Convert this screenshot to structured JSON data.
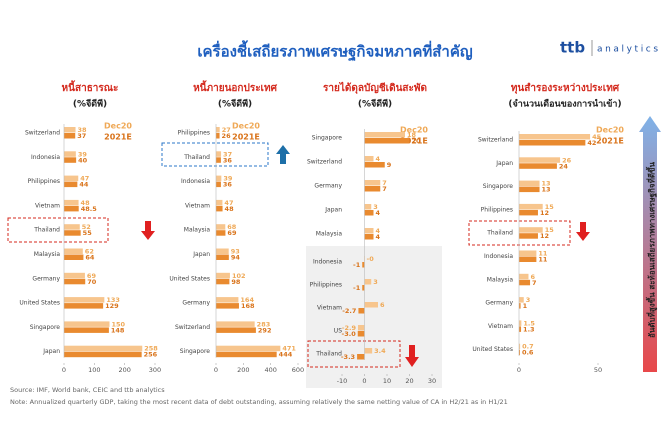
{
  "header": {
    "title": "เครื่องชี้เสถียรภาพเศรษฐกิจมหภาคที่สำคัญ",
    "logo_brand": "ttb",
    "logo_text": "analytics"
  },
  "chart_data": [
    {
      "type": "bar",
      "title": "หนี้สาธารณะ",
      "subtitle": "(%จีดีพี)",
      "categories": [
        "Switzerland",
        "Indonesia",
        "Philippines",
        "Vietnam",
        "Thailand",
        "Malaysia",
        "Germany",
        "United States",
        "Singapore",
        "Japan"
      ],
      "series": [
        {
          "name": "Dec20",
          "color": "#f7c58d",
          "values": [
            38,
            39,
            47,
            48,
            52,
            62,
            69,
            133,
            150,
            258
          ]
        },
        {
          "name": "2021E",
          "color": "#e98a2f",
          "values": [
            37,
            40,
            44,
            48.5,
            55,
            64,
            70,
            129,
            148,
            256
          ]
        }
      ],
      "xlim": [
        0,
        300
      ],
      "xticks": [
        0,
        100,
        200,
        300
      ]
    },
    {
      "type": "bar",
      "title": "หนี้ภายนอกประเทศ",
      "subtitle": "(%จีดีพี)",
      "categories": [
        "Philippines",
        "Thailand",
        "Indonesia",
        "Vietnam",
        "Malaysia",
        "Japan",
        "United States",
        "Germany",
        "Switzerland",
        "Singapore"
      ],
      "series": [
        {
          "name": "Dec20",
          "color": "#f7c58d",
          "values": [
            27,
            37,
            39,
            47,
            68,
            93,
            102,
            164,
            283,
            471
          ]
        },
        {
          "name": "2021E",
          "color": "#e98a2f",
          "values": [
            26,
            36,
            36,
            48,
            69,
            94,
            98,
            168,
            292,
            444
          ]
        }
      ],
      "xlim": [
        0,
        600
      ],
      "xticks": [
        0,
        200,
        400,
        600
      ]
    },
    {
      "type": "bar",
      "title": "รายได้ดุลบัญชีเดินสะพัด",
      "subtitle": "(%จีดีพี)",
      "categories": [
        "Singapore",
        "Switzerland",
        "Germany",
        "Japan",
        "Malaysia",
        "Indonesia",
        "Philippines",
        "Vietnam",
        "US",
        "Thailand"
      ],
      "series": [
        {
          "name": "Dec20",
          "color": "#f7c58d",
          "values": [
            18,
            4,
            7,
            3,
            4,
            0,
            3,
            6,
            -2.9,
            3.4
          ],
          "value_labels": [
            "18",
            "4",
            "7",
            "3",
            "4",
            "-0",
            "3",
            "6",
            "-2.9",
            "3.4"
          ]
        },
        {
          "name": "2021E",
          "color": "#e98a2f",
          "values": [
            20,
            9,
            7,
            4,
            4,
            -1,
            -1,
            -2.7,
            -3.0,
            -3.3
          ],
          "value_labels": [
            "20",
            "9",
            "7",
            "4",
            "4",
            "-1",
            "-1",
            "-2.7",
            "-3.0",
            "-3.3"
          ]
        }
      ],
      "xlim": [
        -10,
        30
      ],
      "xticks": [
        -10,
        0,
        10,
        20,
        30
      ]
    },
    {
      "type": "bar",
      "title": "ทุนสำรองระหว่างประเทศ",
      "subtitle": "(จำนวนเดือนของการนำเข้า)",
      "categories": [
        "Switzerland",
        "Japan",
        "Singapore",
        "Philippines",
        "Thailand",
        "Indonesia",
        "Malaysia",
        "Germany",
        "Vietnam",
        "United States"
      ],
      "series": [
        {
          "name": "Dec20",
          "color": "#f7c58d",
          "values": [
            45,
            26,
            13,
            15,
            15,
            11,
            6,
            3,
            1.5,
            0.7
          ]
        },
        {
          "name": "2021E",
          "color": "#e98a2f",
          "values": [
            42,
            24,
            13,
            12,
            12,
            11,
            7,
            1,
            1.3,
            0.6
          ]
        }
      ],
      "xlim": [
        0,
        50
      ],
      "xticks": [
        0,
        50
      ]
    }
  ],
  "side_note": "อันดับที่สูงขึ้น สะท้อนเสถียรภาพทางเศรษฐกิจที่ดีขึ้น",
  "footer": {
    "source": "Source: IMF, World bank, CEIC and ttb analytics",
    "note": "Note: Annualized quarterly GDP, taking the most recent data of debt outstanding, assuming relatively the same netting value of CA in H2/21 as in H1/21"
  }
}
